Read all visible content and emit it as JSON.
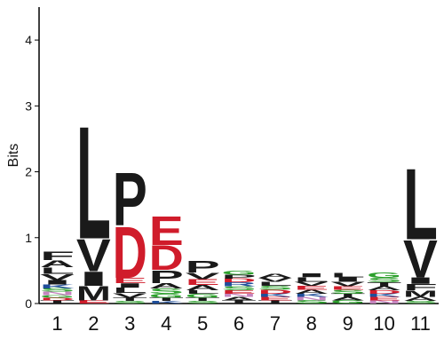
{
  "chart_data": {
    "type": "sequence-logo",
    "ylabel": "Bits",
    "ylim": [
      0,
      4.5
    ],
    "yticks": [
      "0",
      "1",
      "2",
      "3",
      "4"
    ],
    "positions": [
      "1",
      "2",
      "3",
      "4",
      "5",
      "6",
      "7",
      "8",
      "9",
      "10",
      "11"
    ],
    "columns": [
      [
        {
          "letter": "T",
          "height": 0.05,
          "color": "#1a1a1a"
        },
        {
          "letter": "D",
          "height": 0.04,
          "color": "#d01c2b"
        },
        {
          "letter": "G",
          "height": 0.04,
          "color": "#2ca02c"
        },
        {
          "letter": "N",
          "height": 0.05,
          "color": "#c585c0"
        },
        {
          "letter": "S",
          "height": 0.05,
          "color": "#2ca02c"
        },
        {
          "letter": "K",
          "height": 0.06,
          "color": "#1f4e9a"
        },
        {
          "letter": "I",
          "height": 0.07,
          "color": "#1a1a1a"
        },
        {
          "letter": "V",
          "height": 0.09,
          "color": "#1a1a1a"
        },
        {
          "letter": "L",
          "height": 0.1,
          "color": "#1a1a1a"
        },
        {
          "letter": "A",
          "height": 0.11,
          "color": "#1a1a1a"
        },
        {
          "letter": "F",
          "height": 0.13,
          "color": "#1a1a1a"
        }
      ],
      [
        {
          "letter": "E",
          "height": 0.05,
          "color": "#d01c2b"
        },
        {
          "letter": "M",
          "height": 0.22,
          "color": "#1a1a1a"
        },
        {
          "letter": "I",
          "height": 0.22,
          "color": "#1a1a1a"
        },
        {
          "letter": "V",
          "height": 0.5,
          "color": "#1a1a1a"
        },
        {
          "letter": "L",
          "height": 1.75,
          "color": "#1a1a1a"
        }
      ],
      [
        {
          "letter": "S",
          "height": 0.04,
          "color": "#2ca02c"
        },
        {
          "letter": "T",
          "height": 0.05,
          "color": "#1a1a1a"
        },
        {
          "letter": "V",
          "height": 0.07,
          "color": "#1a1a1a"
        },
        {
          "letter": "L",
          "height": 0.08,
          "color": "#1a1a1a"
        },
        {
          "letter": "I",
          "height": 0.07,
          "color": "#1a1a1a"
        },
        {
          "letter": "E",
          "height": 0.08,
          "color": "#d01c2b"
        },
        {
          "letter": "D",
          "height": 0.8,
          "color": "#d01c2b"
        },
        {
          "letter": "P",
          "height": 0.82,
          "color": "#1a1a1a"
        }
      ],
      [
        {
          "letter": "K",
          "height": 0.04,
          "color": "#1f4e9a"
        },
        {
          "letter": "T",
          "height": 0.05,
          "color": "#1a1a1a"
        },
        {
          "letter": "G",
          "height": 0.06,
          "color": "#2ca02c"
        },
        {
          "letter": "S",
          "height": 0.08,
          "color": "#2ca02c"
        },
        {
          "letter": "A",
          "height": 0.08,
          "color": "#1a1a1a"
        },
        {
          "letter": "P",
          "height": 0.2,
          "color": "#1a1a1a"
        },
        {
          "letter": "D",
          "height": 0.38,
          "color": "#d01c2b"
        },
        {
          "letter": "E",
          "height": 0.45,
          "color": "#d01c2b"
        }
      ],
      [
        {
          "letter": "S",
          "height": 0.04,
          "color": "#2ca02c"
        },
        {
          "letter": "T",
          "height": 0.05,
          "color": "#1a1a1a"
        },
        {
          "letter": "G",
          "height": 0.06,
          "color": "#2ca02c"
        },
        {
          "letter": "L",
          "height": 0.05,
          "color": "#1a1a1a"
        },
        {
          "letter": "A",
          "height": 0.08,
          "color": "#1a1a1a"
        },
        {
          "letter": "E",
          "height": 0.09,
          "color": "#d01c2b"
        },
        {
          "letter": "V",
          "height": 0.1,
          "color": "#1a1a1a"
        },
        {
          "letter": "P",
          "height": 0.18,
          "color": "#1a1a1a"
        }
      ],
      [
        {
          "letter": "T",
          "height": 0.05,
          "color": "#1a1a1a"
        },
        {
          "letter": "A",
          "height": 0.05,
          "color": "#1a1a1a"
        },
        {
          "letter": "N",
          "height": 0.05,
          "color": "#c585c0"
        },
        {
          "letter": "E",
          "height": 0.05,
          "color": "#d01c2b"
        },
        {
          "letter": "S",
          "height": 0.06,
          "color": "#2ca02c"
        },
        {
          "letter": "R",
          "height": 0.06,
          "color": "#1f4e9a"
        },
        {
          "letter": "D",
          "height": 0.06,
          "color": "#d01c2b"
        },
        {
          "letter": "P",
          "height": 0.06,
          "color": "#1a1a1a"
        },
        {
          "letter": "G",
          "height": 0.06,
          "color": "#2ca02c"
        }
      ],
      [
        {
          "letter": "T",
          "height": 0.05,
          "color": "#1a1a1a"
        },
        {
          "letter": "E",
          "height": 0.05,
          "color": "#d01c2b"
        },
        {
          "letter": "K",
          "height": 0.05,
          "color": "#1f4e9a"
        },
        {
          "letter": "D",
          "height": 0.06,
          "color": "#d01c2b"
        },
        {
          "letter": "S",
          "height": 0.06,
          "color": "#2ca02c"
        },
        {
          "letter": "L",
          "height": 0.06,
          "color": "#1a1a1a"
        },
        {
          "letter": "V",
          "height": 0.06,
          "color": "#1a1a1a"
        },
        {
          "letter": "A",
          "height": 0.06,
          "color": "#1a1a1a"
        }
      ],
      [
        {
          "letter": "S",
          "height": 0.05,
          "color": "#2ca02c"
        },
        {
          "letter": "N",
          "height": 0.05,
          "color": "#c585c0"
        },
        {
          "letter": "K",
          "height": 0.05,
          "color": "#1f4e9a"
        },
        {
          "letter": "A",
          "height": 0.06,
          "color": "#1a1a1a"
        },
        {
          "letter": "E",
          "height": 0.06,
          "color": "#d01c2b"
        },
        {
          "letter": "V",
          "height": 0.06,
          "color": "#1a1a1a"
        },
        {
          "letter": "L",
          "height": 0.07,
          "color": "#1a1a1a"
        },
        {
          "letter": "I",
          "height": 0.06,
          "color": "#1a1a1a"
        }
      ],
      [
        {
          "letter": "G",
          "height": 0.05,
          "color": "#2ca02c"
        },
        {
          "letter": "A",
          "height": 0.05,
          "color": "#1a1a1a"
        },
        {
          "letter": "T",
          "height": 0.05,
          "color": "#1a1a1a"
        },
        {
          "letter": "S",
          "height": 0.06,
          "color": "#2ca02c"
        },
        {
          "letter": "E",
          "height": 0.05,
          "color": "#d01c2b"
        },
        {
          "letter": "V",
          "height": 0.07,
          "color": "#1a1a1a"
        },
        {
          "letter": "I",
          "height": 0.07,
          "color": "#1a1a1a"
        },
        {
          "letter": "L",
          "height": 0.07,
          "color": "#1a1a1a"
        }
      ],
      [
        {
          "letter": "N",
          "height": 0.05,
          "color": "#c585c0"
        },
        {
          "letter": "E",
          "height": 0.05,
          "color": "#d01c2b"
        },
        {
          "letter": "K",
          "height": 0.05,
          "color": "#1f4e9a"
        },
        {
          "letter": "D",
          "height": 0.05,
          "color": "#d01c2b"
        },
        {
          "letter": "A",
          "height": 0.06,
          "color": "#1a1a1a"
        },
        {
          "letter": "T",
          "height": 0.06,
          "color": "#1a1a1a"
        },
        {
          "letter": "S",
          "height": 0.07,
          "color": "#2ca02c"
        },
        {
          "letter": "G",
          "height": 0.08,
          "color": "#2ca02c"
        }
      ],
      [
        {
          "letter": "S",
          "height": 0.04,
          "color": "#2ca02c"
        },
        {
          "letter": "A",
          "height": 0.06,
          "color": "#1a1a1a"
        },
        {
          "letter": "M",
          "height": 0.1,
          "color": "#1a1a1a"
        },
        {
          "letter": "F",
          "height": 0.1,
          "color": "#1a1a1a"
        },
        {
          "letter": "I",
          "height": 0.1,
          "color": "#1a1a1a"
        },
        {
          "letter": "V",
          "height": 0.58,
          "color": "#1a1a1a"
        },
        {
          "letter": "L",
          "height": 1.1,
          "color": "#1a1a1a"
        }
      ]
    ]
  }
}
